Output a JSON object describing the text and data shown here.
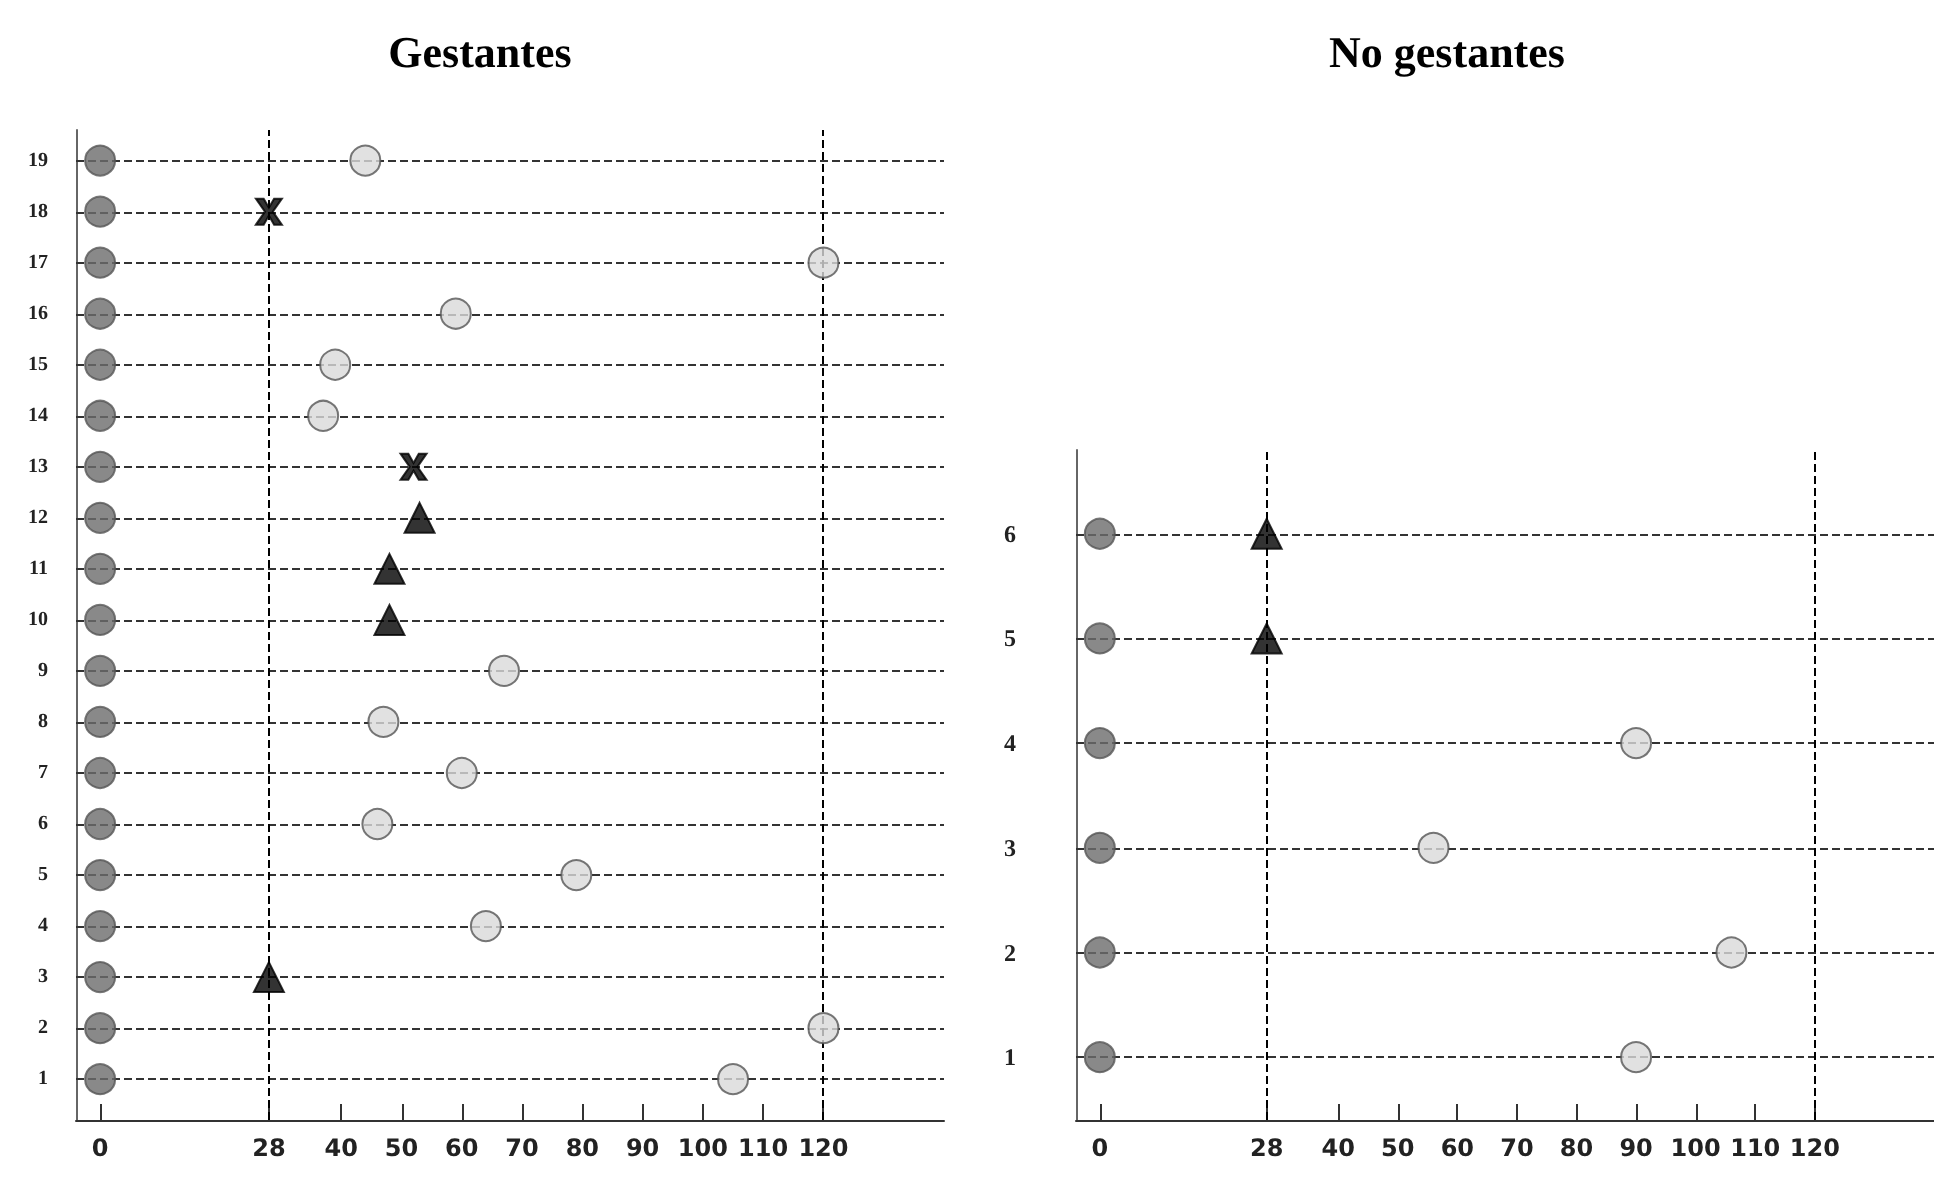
{
  "chart_data": [
    {
      "type": "scatter",
      "title": "Gestantes",
      "xlim": [
        -4,
        140
      ],
      "ylim": [
        0.2,
        19.6
      ],
      "xticks": [
        0,
        28,
        40,
        50,
        60,
        70,
        80,
        90,
        100,
        110,
        120
      ],
      "yticks": [
        1,
        2,
        3,
        4,
        5,
        6,
        7,
        8,
        9,
        10,
        11,
        12,
        13,
        14,
        15,
        16,
        17,
        18,
        19
      ],
      "grid": "y",
      "ref_lines": [
        {
          "axis": "x",
          "value": 28,
          "color": "#000000",
          "line_style": "dashed"
        },
        {
          "axis": "x",
          "value": 120,
          "color": "#000000",
          "line_style": "dashed"
        }
      ],
      "series": [
        {
          "color": "#6b6b6b",
          "marker": "circle",
          "x": [
            0,
            0,
            0,
            0,
            0,
            0,
            0,
            0,
            0,
            0,
            0,
            0,
            0,
            0,
            0,
            0,
            0,
            0,
            0
          ],
          "values": [
            1,
            2,
            3,
            4,
            5,
            6,
            7,
            8,
            9,
            10,
            11,
            12,
            13,
            14,
            15,
            16,
            17,
            18,
            19
          ]
        },
        {
          "color": "#d9d9d9",
          "marker": "circle",
          "x": [
            105,
            120,
            64,
            79,
            46,
            60,
            47,
            67,
            37,
            39,
            59,
            120,
            44
          ],
          "values": [
            1,
            2,
            4,
            5,
            6,
            7,
            8,
            9,
            14,
            15,
            16,
            17,
            19
          ]
        },
        {
          "color": "#000000",
          "marker": "triangle",
          "x": [
            28,
            48,
            48,
            53
          ],
          "values": [
            3,
            10,
            11,
            12
          ]
        },
        {
          "color": "#000000",
          "marker": "cross",
          "x": [
            52,
            28
          ],
          "values": [
            13,
            18
          ]
        }
      ]
    },
    {
      "type": "scatter",
      "title": "No gestantes",
      "xlim": [
        -4,
        140
      ],
      "ylim": [
        0.4,
        6.8
      ],
      "xticks": [
        0,
        28,
        40,
        50,
        60,
        70,
        80,
        90,
        100,
        110,
        120
      ],
      "yticks": [
        1,
        2,
        3,
        4,
        5,
        6
      ],
      "grid": "y",
      "ref_lines": [
        {
          "axis": "x",
          "value": 28,
          "color": "#000000",
          "line_style": "dashed"
        },
        {
          "axis": "x",
          "value": 120,
          "color": "#000000",
          "line_style": "dashed"
        }
      ],
      "series": [
        {
          "color": "#6b6b6b",
          "marker": "circle",
          "x": [
            0,
            0,
            0,
            0,
            0,
            0
          ],
          "values": [
            1,
            2,
            3,
            4,
            5,
            6
          ]
        },
        {
          "color": "#d9d9d9",
          "marker": "circle",
          "x": [
            90,
            106,
            56,
            90
          ],
          "values": [
            1,
            2,
            3,
            4
          ]
        },
        {
          "color": "#000000",
          "marker": "triangle",
          "x": [
            28,
            28
          ],
          "values": [
            5,
            6
          ]
        }
      ]
    }
  ]
}
